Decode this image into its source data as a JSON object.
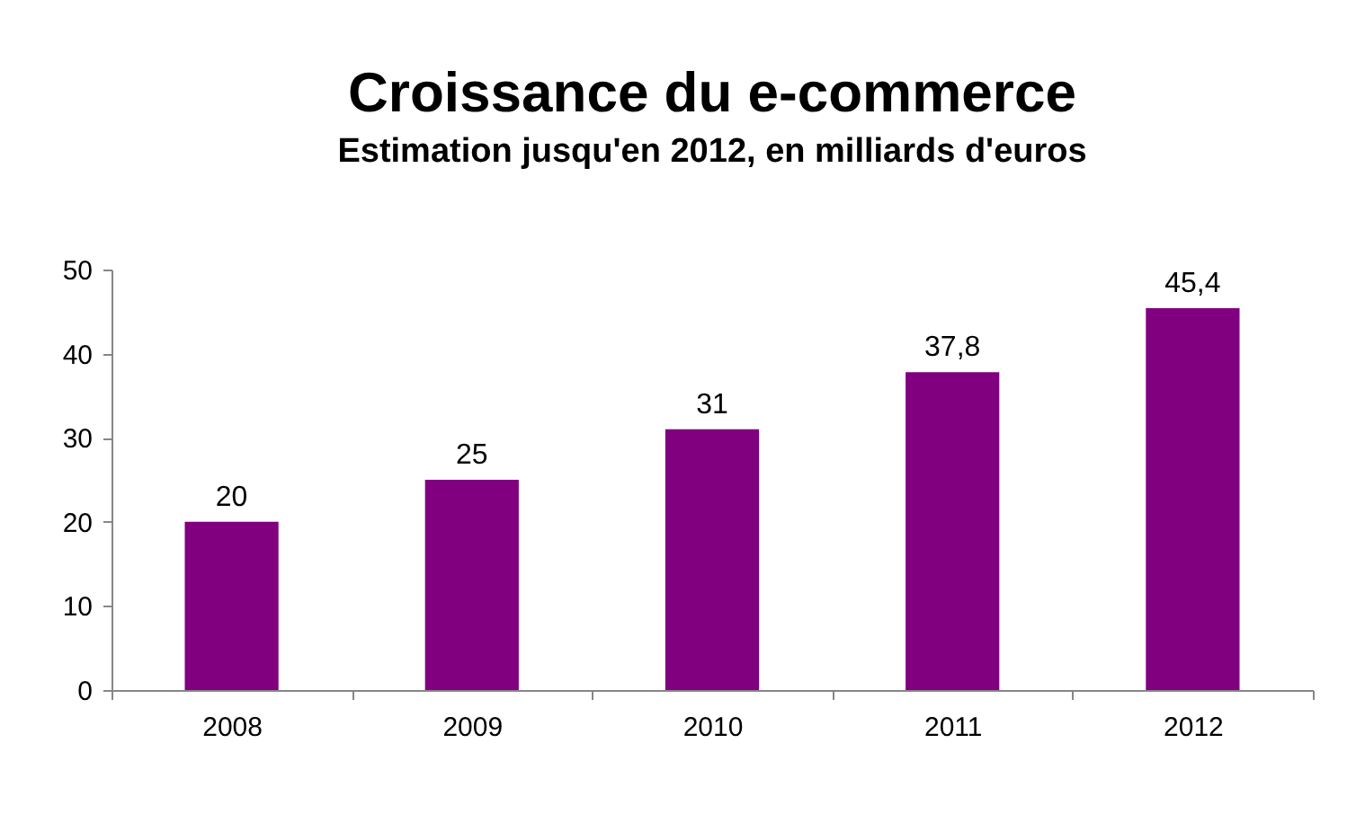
{
  "chart_data": {
    "type": "bar",
    "title": "Croissance du e-commerce",
    "subtitle": "Estimation jusqu'en 2012, en milliards d'euros",
    "categories": [
      "2008",
      "2009",
      "2010",
      "2011",
      "2012"
    ],
    "values": [
      20,
      25,
      31,
      37.8,
      45.4
    ],
    "value_labels": [
      "20",
      "25",
      "31",
      "37,8",
      "45,4"
    ],
    "color": "#800080",
    "ylim": [
      0,
      50
    ],
    "yticks": [
      0,
      10,
      20,
      30,
      40,
      50
    ],
    "grid": false
  }
}
